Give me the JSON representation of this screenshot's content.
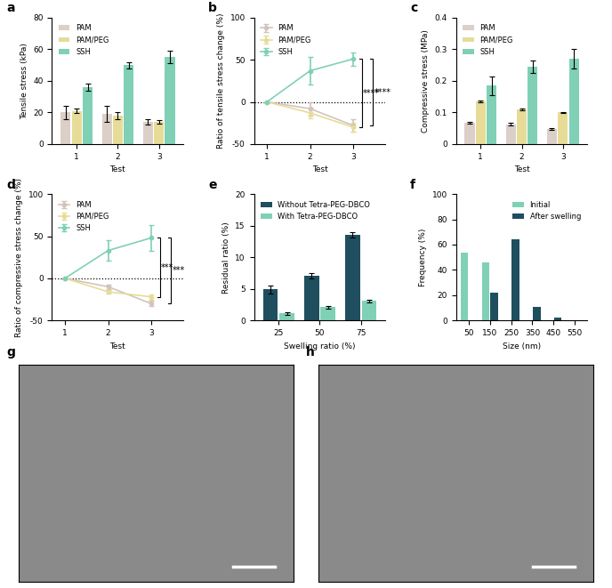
{
  "chart_data": [
    {
      "panel": "a",
      "type": "bar",
      "categories": [
        "1",
        "2",
        "3"
      ],
      "x_label": "Test",
      "y_label": "Tensile stress (kPa)",
      "ylim": [
        0,
        80
      ],
      "yticks": [
        0,
        20,
        40,
        60,
        80
      ],
      "legend": "upper left",
      "series": [
        {
          "name": "PAM",
          "color": "#dccfc8",
          "values": [
            20,
            19,
            14
          ],
          "errors": [
            4,
            5,
            1.5
          ]
        },
        {
          "name": "PAM/PEG",
          "color": "#e6dc98",
          "values": [
            21,
            18,
            14
          ],
          "errors": [
            1.5,
            2,
            1
          ]
        },
        {
          "name": "SSH",
          "color": "#80d0b6",
          "values": [
            36,
            50,
            55
          ],
          "errors": [
            2,
            2,
            4
          ]
        }
      ]
    },
    {
      "panel": "b",
      "type": "line",
      "categories": [
        "1",
        "2",
        "3"
      ],
      "x_label": "Test",
      "y_label": "Ratio of tensile stress change (%)",
      "ylim": [
        -50,
        100
      ],
      "yticks": [
        -50,
        0,
        50,
        100
      ],
      "legend": "upper left",
      "marker": "o",
      "annotations": [
        "****",
        "****"
      ],
      "series": [
        {
          "name": "PAM",
          "color": "#d2c3bc",
          "values": [
            0,
            -8,
            -28
          ],
          "errors": [
            0,
            8,
            7
          ]
        },
        {
          "name": "PAM/PEG",
          "color": "#e6dc98",
          "values": [
            0,
            -13,
            -30
          ],
          "errors": [
            0,
            6,
            5
          ]
        },
        {
          "name": "SSH",
          "color": "#80d0b6",
          "values": [
            0,
            37,
            51
          ],
          "errors": [
            0,
            16,
            8
          ]
        }
      ]
    },
    {
      "panel": "c",
      "type": "bar",
      "categories": [
        "1",
        "2",
        "3"
      ],
      "x_label": "Test",
      "y_label": "Compressive stress (MPa)",
      "ylim": [
        0,
        0.4
      ],
      "yticks": [
        0,
        0.1,
        0.2,
        0.3,
        0.4
      ],
      "legend": "upper left",
      "series": [
        {
          "name": "PAM",
          "color": "#dccfc8",
          "values": [
            0.068,
            0.063,
            0.047
          ],
          "errors": [
            0.003,
            0.003,
            0.003
          ]
        },
        {
          "name": "PAM/PEG",
          "color": "#e6dc98",
          "values": [
            0.135,
            0.11,
            0.1
          ],
          "errors": [
            0.004,
            0.003,
            0.002
          ]
        },
        {
          "name": "SSH",
          "color": "#80d0b6",
          "values": [
            0.185,
            0.245,
            0.27
          ],
          "errors": [
            0.03,
            0.02,
            0.03
          ]
        }
      ]
    },
    {
      "panel": "d",
      "type": "line",
      "categories": [
        "1",
        "2",
        "3"
      ],
      "x_label": "Test",
      "y_label": "Ratio of compressive stress change (%)",
      "ylim": [
        -50,
        100
      ],
      "yticks": [
        -50,
        0,
        50,
        100
      ],
      "legend": "upper left",
      "marker": "o",
      "annotations": [
        "***",
        "***"
      ],
      "series": [
        {
          "name": "PAM",
          "color": "#d2c3bc",
          "values": [
            0,
            -10,
            -30
          ],
          "errors": [
            0,
            3,
            3
          ]
        },
        {
          "name": "PAM/PEG",
          "color": "#e6dc98",
          "values": [
            0,
            -16,
            -22
          ],
          "errors": [
            0,
            2,
            3
          ]
        },
        {
          "name": "SSH",
          "color": "#80d0b6",
          "values": [
            0,
            33,
            48
          ],
          "errors": [
            0,
            12,
            15
          ]
        }
      ]
    },
    {
      "panel": "e",
      "type": "bar",
      "categories": [
        "25",
        "50",
        "75"
      ],
      "x_label": "Swelling ratio (%)",
      "y_label": "Residual ratio (%)",
      "ylim": [
        0,
        20
      ],
      "yticks": [
        0,
        5,
        10,
        15,
        20
      ],
      "legend": "upper left",
      "series": [
        {
          "name": "Without Tetra-PEG-DBCO",
          "color": "#1f4e5e",
          "values": [
            4.9,
            7.1,
            13.5
          ],
          "errors": [
            0.6,
            0.4,
            0.4
          ]
        },
        {
          "name": "With Tetra-PEG-DBCO",
          "color": "#80d0b6",
          "values": [
            1.1,
            2.1,
            3.1
          ],
          "errors": [
            0.2,
            0.2,
            0.2
          ]
        }
      ]
    },
    {
      "panel": "f",
      "type": "bar",
      "categories": [
        "50",
        "150",
        "250",
        "350",
        "450",
        "550"
      ],
      "x_label": "Size (nm)",
      "y_label": "Frequency (%)",
      "ylim": [
        0,
        100
      ],
      "yticks": [
        0,
        20,
        40,
        60,
        80,
        100
      ],
      "legend": "upper right",
      "series": [
        {
          "name": "Initial",
          "color": "#80d0b6",
          "values": [
            54,
            46,
            0,
            0,
            0,
            0
          ]
        },
        {
          "name": "After swelling",
          "color": "#1f4e5e",
          "values": [
            0,
            22,
            64,
            11,
            2,
            0
          ]
        }
      ]
    }
  ],
  "images": [
    {
      "panel": "g"
    },
    {
      "panel": "h"
    }
  ]
}
